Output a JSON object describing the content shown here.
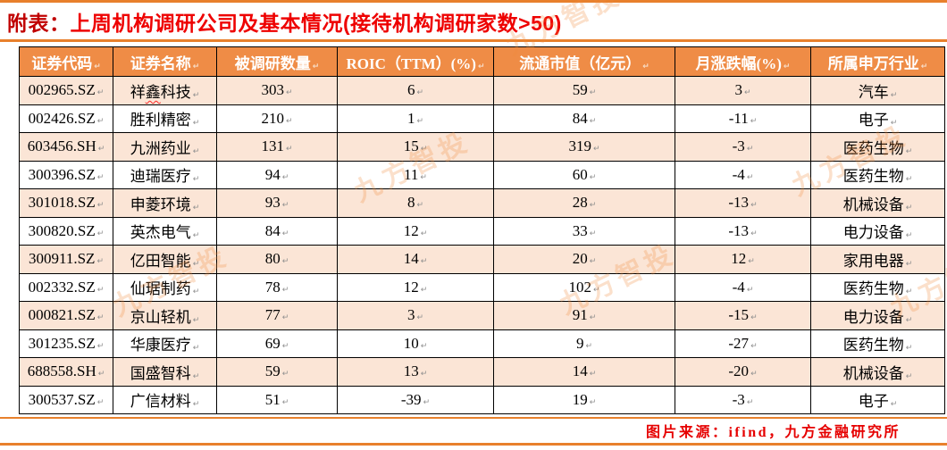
{
  "title": {
    "prefix": "附表：",
    "main": "上周机构调研公司及基本情况(接待机构调研家数>50)"
  },
  "table": {
    "headers": [
      "证券代码",
      "证券名称",
      "被调研数量",
      "ROIC（TTM）(%)",
      "流通市值（亿元）",
      "月涨跌幅(%)",
      "所属申万行业"
    ],
    "rows": [
      [
        "002965.SZ",
        "祥鑫科技",
        "303",
        "6",
        "59",
        "3",
        "汽车"
      ],
      [
        "002426.SZ",
        "胜利精密",
        "210",
        "1",
        "84",
        "-11",
        "电子"
      ],
      [
        "603456.SH",
        "九洲药业",
        "131",
        "15",
        "319",
        "-3",
        "医药生物"
      ],
      [
        "300396.SZ",
        "迪瑞医疗",
        "94",
        "11",
        "60",
        "-4",
        "医药生物"
      ],
      [
        "301018.SZ",
        "申菱环境",
        "93",
        "8",
        "28",
        "-13",
        "机械设备"
      ],
      [
        "300820.SZ",
        "英杰电气",
        "84",
        "12",
        "33",
        "-13",
        "电力设备"
      ],
      [
        "300911.SZ",
        "亿田智能",
        "80",
        "14",
        "20",
        "12",
        "家用电器"
      ],
      [
        "002332.SZ",
        "仙琚制药",
        "78",
        "12",
        "102",
        "-4",
        "医药生物"
      ],
      [
        "000821.SZ",
        "京山轻机",
        "77",
        "3",
        "91",
        "-15",
        "电力设备"
      ],
      [
        "301235.SZ",
        "华康医疗",
        "69",
        "10",
        "9",
        "-27",
        "医药生物"
      ],
      [
        "688558.SH",
        "国盛智科",
        "59",
        "13",
        "14",
        "-20",
        "机械设备"
      ],
      [
        "300537.SZ",
        "广信材料",
        "51",
        "-39",
        "19",
        "-3",
        "电子"
      ]
    ],
    "misspelled_char": "鑫"
  },
  "footer": {
    "source": "图片来源：ifind，九方金融研究所"
  },
  "watermark": {
    "text": "九方智投"
  },
  "decoration": {
    "return_mark": "↵"
  },
  "colors": {
    "header_orange": "#EF8C46",
    "row_peach": "#FBE5D6",
    "divider_orange": "#E8802C",
    "title_prefix_red": "#C00000",
    "title_red": "#EE0000",
    "source_red": "#E60000",
    "watermark_orange": "#F08A3C"
  }
}
